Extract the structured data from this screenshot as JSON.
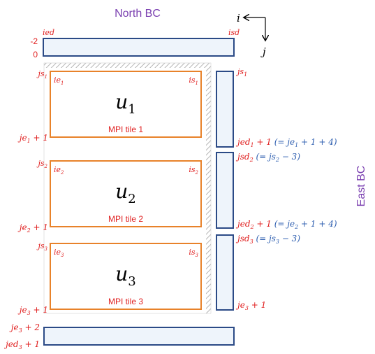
{
  "north_bc": "North BC",
  "east_bc": "East BC",
  "axis": {
    "i": "i",
    "j": "j"
  },
  "north_box": {
    "ied": "ied",
    "isd": "isd",
    "row_minus2": "-2",
    "row_0": "0"
  },
  "tiles": [
    {
      "label": "MPI tile 1",
      "var_base": "u",
      "var_sub": "1",
      "js": "js",
      "js_sub": "1",
      "ie": "ie",
      "ie_sub": "1",
      "is": "is",
      "is_sub": "1",
      "je_bottom": "je",
      "je_bottom_sub": "1",
      "je_bottom_tail": " + 1"
    },
    {
      "label": "MPI tile 2",
      "var_base": "u",
      "var_sub": "2",
      "js": "js",
      "js_sub": "2",
      "ie": "ie",
      "ie_sub": "2",
      "is": "is",
      "is_sub": "2",
      "je_bottom": "je",
      "je_bottom_sub": "2",
      "je_bottom_tail": " + 1"
    },
    {
      "label": "MPI tile 3",
      "var_base": "u",
      "var_sub": "3",
      "js": "js",
      "js_sub": "3",
      "ie": "ie",
      "ie_sub": "3",
      "is": "is",
      "is_sub": "3",
      "je_bottom": "je",
      "je_bottom_sub": "3",
      "je_bottom_tail": " + 1"
    }
  ],
  "east_labels": {
    "js1": {
      "base": "js",
      "sub": "1"
    },
    "jed1": {
      "base": "jed",
      "sub": "1",
      "red_tail": " + 1 ",
      "blue": "(= je",
      "blue_sub": "1",
      "blue_tail": " + 1 + 4)"
    },
    "jsd2": {
      "base": "jsd",
      "sub": "2",
      "blue": " (= js",
      "blue_sub": "2",
      "blue_tail": " − 3)"
    },
    "jed2": {
      "base": "jed",
      "sub": "2",
      "red_tail": " + 1 ",
      "blue": "(= je",
      "blue_sub": "2",
      "blue_tail": " + 1 + 4)"
    },
    "jsd3": {
      "base": "jsd",
      "sub": "3",
      "blue": " (= js",
      "blue_sub": "3",
      "blue_tail": " − 3)"
    },
    "je3": {
      "base": "je",
      "sub": "3",
      "tail": " + 1"
    }
  },
  "south_labels": {
    "je3p2": {
      "base": "je",
      "sub": "3",
      "tail": " + 2"
    },
    "jed3p1": {
      "base": "jed",
      "sub": "3",
      "tail": " + 1"
    }
  },
  "colors": {
    "tile_border": "#e8822a",
    "bc_border": "#2b4a86",
    "bc_fill": "#eef4fb",
    "label_red": "#e02020",
    "label_blue": "#2f5fb0",
    "title_purple": "#7a3fb0"
  }
}
